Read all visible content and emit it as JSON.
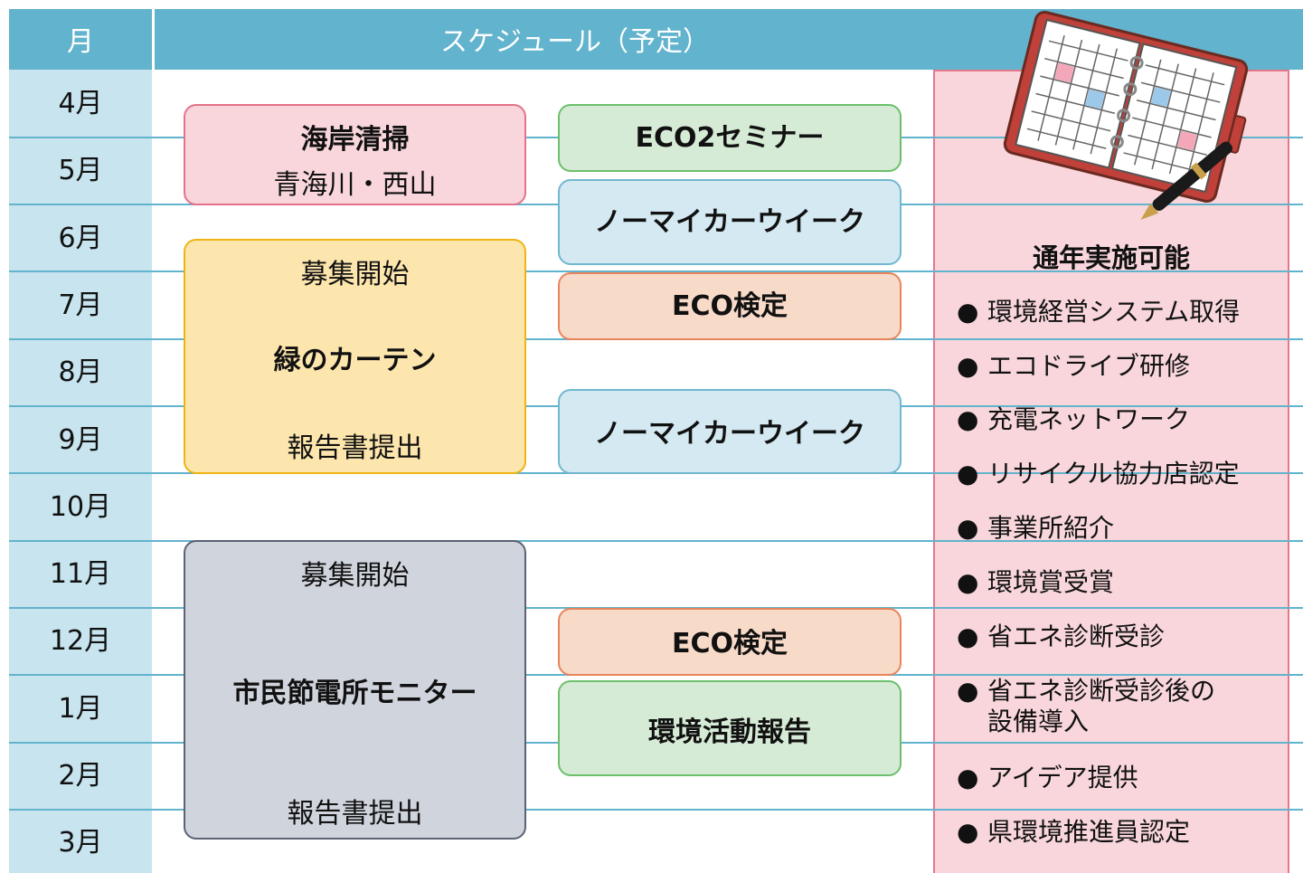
{
  "header": {
    "month": "月",
    "schedule": "スケジュール（予定）"
  },
  "months": [
    "4月",
    "5月",
    "6月",
    "7月",
    "8月",
    "9月",
    "10月",
    "11月",
    "12月",
    "1月",
    "2月",
    "3月"
  ],
  "events": {
    "coast_cleanup": {
      "title": "海岸清掃",
      "subtitle": "青海川・西山"
    },
    "green_curtain": {
      "top": "募集開始",
      "title": "緑のカーテン",
      "bottom": "報告書提出"
    },
    "power_monitor": {
      "top": "募集開始",
      "title": "市民節電所モニター",
      "bottom": "報告書提出"
    },
    "eco2_seminar": {
      "title": "ECO2セミナー"
    },
    "no_mycar_1": {
      "title": "ノーマイカーウイーク"
    },
    "eco_test_1": {
      "title": "ECO検定"
    },
    "no_mycar_2": {
      "title": "ノーマイカーウイーク"
    },
    "eco_test_2": {
      "title": "ECO検定"
    },
    "activity_report": {
      "title": "環境活動報告"
    }
  },
  "year_round": {
    "title": "通年実施可能",
    "items": [
      "環境経営システム取得",
      "エコドライブ研修",
      "充電ネットワーク",
      "リサイクル協力店認定",
      "事業所紹介",
      "環境賞受賞",
      "省エネ診断受診",
      "省エネ診断受診後の\n設備導入",
      "アイデア提供",
      "県環境推進員認定"
    ]
  }
}
